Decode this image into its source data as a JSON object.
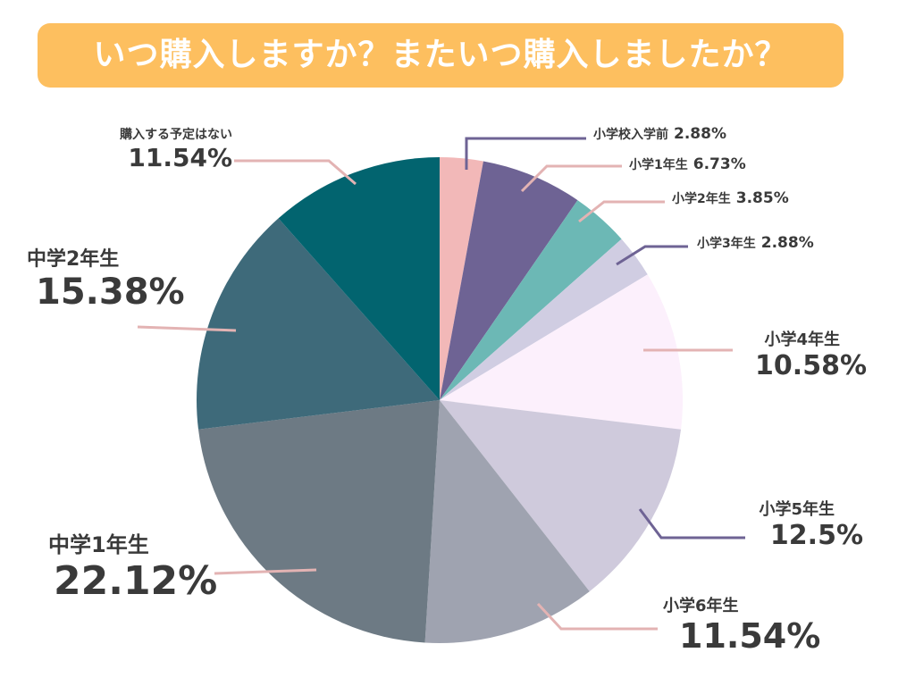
{
  "title": "いつ購入しますか？またいつ購入しましたか？",
  "chart_data": {
    "type": "pie",
    "title": "いつ購入しますか？またいつ購入しましたか？",
    "slices": [
      {
        "label": "小学校入学前",
        "value": 2.88,
        "pct_text": "2.88%",
        "color": "#f2b8b8"
      },
      {
        "label": "小学1年生",
        "value": 6.73,
        "pct_text": "6.73%",
        "color": "#6e6394"
      },
      {
        "label": "小学2年生",
        "value": 3.85,
        "pct_text": "3.85%",
        "color": "#6cb8b5"
      },
      {
        "label": "小学3年生",
        "value": 2.88,
        "pct_text": "2.88%",
        "color": "#d0cde2"
      },
      {
        "label": "小学4年生",
        "value": 10.58,
        "pct_text": "10.58%",
        "color": "#fcf0fc"
      },
      {
        "label": "小学5年生",
        "value": 12.5,
        "pct_text": "12.5%",
        "color": "#cfcadc"
      },
      {
        "label": "小学6年生",
        "value": 11.54,
        "pct_text": "11.54%",
        "color": "#9fa3b0"
      },
      {
        "label": "中学1年生",
        "value": 22.12,
        "pct_text": "22.12%",
        "color": "#6d7a84"
      },
      {
        "label": "中学2年生",
        "value": 15.38,
        "pct_text": "15.38%",
        "color": "#3e6a7a"
      },
      {
        "label": "購入する予定はない",
        "value": 11.54,
        "pct_text": "11.54%",
        "color": "#02646f"
      }
    ],
    "leader_colors": {
      "pink": "#e3b3b3",
      "purple": "#6e6394"
    }
  }
}
